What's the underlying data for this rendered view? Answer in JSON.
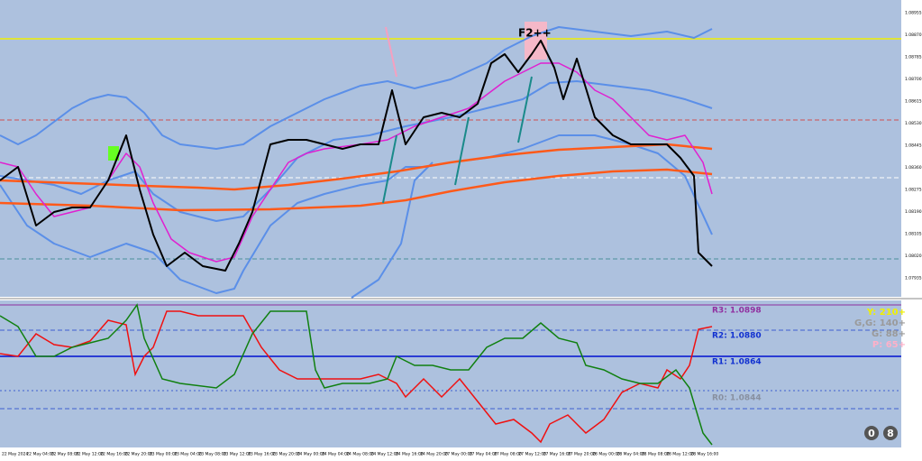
{
  "chart_label": "F2++",
  "pivots": [
    "R3: 1.0898",
    "R2: 1.0880",
    "R1: 1.0864",
    "R0: 1.0844"
  ],
  "targets": [
    "Y: 210+",
    "G,G: 140+",
    "G: 88+",
    "P: 65+"
  ],
  "buttons": [
    "0",
    "8"
  ],
  "price_axis": [
    "1.08955",
    "1.08870",
    "1.08785",
    "1.08700",
    "1.08615",
    "1.08530",
    "1.08445",
    "1.08360",
    "1.08275",
    "1.08190",
    "1.08105",
    "1.08020",
    "1.07935"
  ],
  "time_axis": [
    "22 May 2024",
    "22 May 04:00",
    "22 May 08:00",
    "22 May 12:00",
    "22 May 16:00",
    "22 May 20:00",
    "23 May 00:00",
    "23 May 04:00",
    "23 May 08:00",
    "23 May 12:00",
    "23 May 16:00",
    "23 May 20:00",
    "24 May 00:00",
    "24 May 04:00",
    "24 May 08:00",
    "24 May 12:00",
    "24 May 16:00",
    "24 May 20:00",
    "27 May 00:00",
    "27 May 04:00",
    "27 May 08:00",
    "27 May 12:00",
    "27 May 16:00",
    "27 May 20:00",
    "28 May 00:00",
    "28 May 04:00",
    "28 May 08:00",
    "28 May 12:00",
    "28 May 16:00"
  ]
}
